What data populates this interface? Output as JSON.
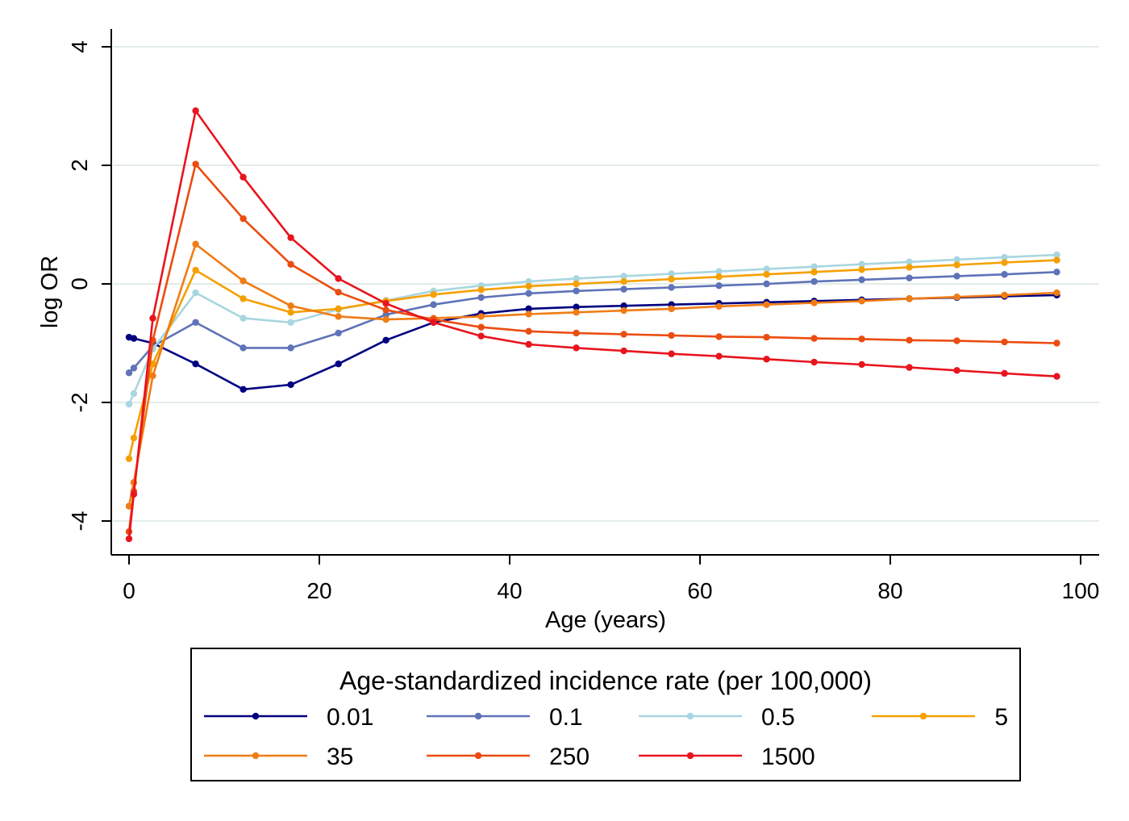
{
  "chart_data": {
    "type": "line",
    "title": "",
    "xlabel": "Age (years)",
    "ylabel": "log OR",
    "xlim": [
      0,
      100
    ],
    "ylim": [
      -4.5,
      4.3
    ],
    "xticks": [
      0,
      20,
      40,
      60,
      80,
      100
    ],
    "yticks": [
      -4,
      -2,
      0,
      2,
      4
    ],
    "xtick_labels": [
      "0",
      "20",
      "40",
      "60",
      "80",
      "100"
    ],
    "ytick_labels": [
      "-4",
      "-2",
      "0",
      "2",
      "4"
    ],
    "grid": "horizontal",
    "legend_title": "Age-standardized incidence rate (per 100,000)",
    "legend_position": "bottom",
    "x": [
      0,
      0.5,
      2.5,
      7,
      12,
      17,
      22,
      27,
      32,
      37,
      42,
      47,
      52,
      57,
      62,
      67,
      72,
      77,
      82,
      87,
      92,
      97.5
    ],
    "series": [
      {
        "name": "0.01",
        "color": "#000080",
        "values": [
          -0.9,
          -0.92,
          -1.0,
          -1.35,
          -1.78,
          -1.7,
          -1.35,
          -0.95,
          -0.65,
          -0.5,
          -0.42,
          -0.39,
          -0.37,
          -0.35,
          -0.33,
          -0.31,
          -0.29,
          -0.27,
          -0.25,
          -0.23,
          -0.21,
          -0.19
        ]
      },
      {
        "name": "0.1",
        "color": "#5E73B8",
        "values": [
          -1.5,
          -1.42,
          -1.05,
          -0.65,
          -1.08,
          -1.08,
          -0.83,
          -0.52,
          -0.35,
          -0.23,
          -0.16,
          -0.12,
          -0.09,
          -0.06,
          -0.03,
          0.0,
          0.04,
          0.07,
          0.1,
          0.13,
          0.16,
          0.2
        ]
      },
      {
        "name": "0.5",
        "color": "#A8D6E0",
        "values": [
          -2.03,
          -1.85,
          -1.1,
          -0.15,
          -0.58,
          -0.65,
          -0.43,
          -0.28,
          -0.12,
          -0.03,
          0.04,
          0.09,
          0.13,
          0.17,
          0.21,
          0.25,
          0.29,
          0.33,
          0.37,
          0.41,
          0.45,
          0.49
        ]
      },
      {
        "name": "5",
        "color": "#F5A000",
        "values": [
          -2.95,
          -2.6,
          -1.35,
          0.23,
          -0.25,
          -0.48,
          -0.42,
          -0.29,
          -0.18,
          -0.1,
          -0.04,
          0.0,
          0.04,
          0.08,
          0.12,
          0.16,
          0.2,
          0.24,
          0.28,
          0.32,
          0.36,
          0.4
        ]
      },
      {
        "name": "35",
        "color": "#F07C14",
        "values": [
          -3.75,
          -3.35,
          -1.55,
          0.67,
          0.05,
          -0.37,
          -0.55,
          -0.6,
          -0.58,
          -0.55,
          -0.51,
          -0.48,
          -0.45,
          -0.42,
          -0.38,
          -0.35,
          -0.32,
          -0.29,
          -0.25,
          -0.22,
          -0.19,
          -0.15
        ]
      },
      {
        "name": "250",
        "color": "#EB4C0F",
        "values": [
          -4.18,
          -3.5,
          -0.95,
          2.02,
          1.1,
          0.33,
          -0.14,
          -0.44,
          -0.6,
          -0.73,
          -0.8,
          -0.83,
          -0.85,
          -0.87,
          -0.89,
          -0.9,
          -0.92,
          -0.93,
          -0.95,
          -0.96,
          -0.98,
          -1.0
        ]
      },
      {
        "name": "1500",
        "color": "#E8141E",
        "values": [
          -4.3,
          -3.55,
          -0.58,
          2.92,
          1.8,
          0.78,
          0.09,
          -0.33,
          -0.65,
          -0.88,
          -1.02,
          -1.08,
          -1.13,
          -1.18,
          -1.22,
          -1.27,
          -1.32,
          -1.36,
          -1.41,
          -1.46,
          -1.51,
          -1.56
        ]
      }
    ]
  }
}
